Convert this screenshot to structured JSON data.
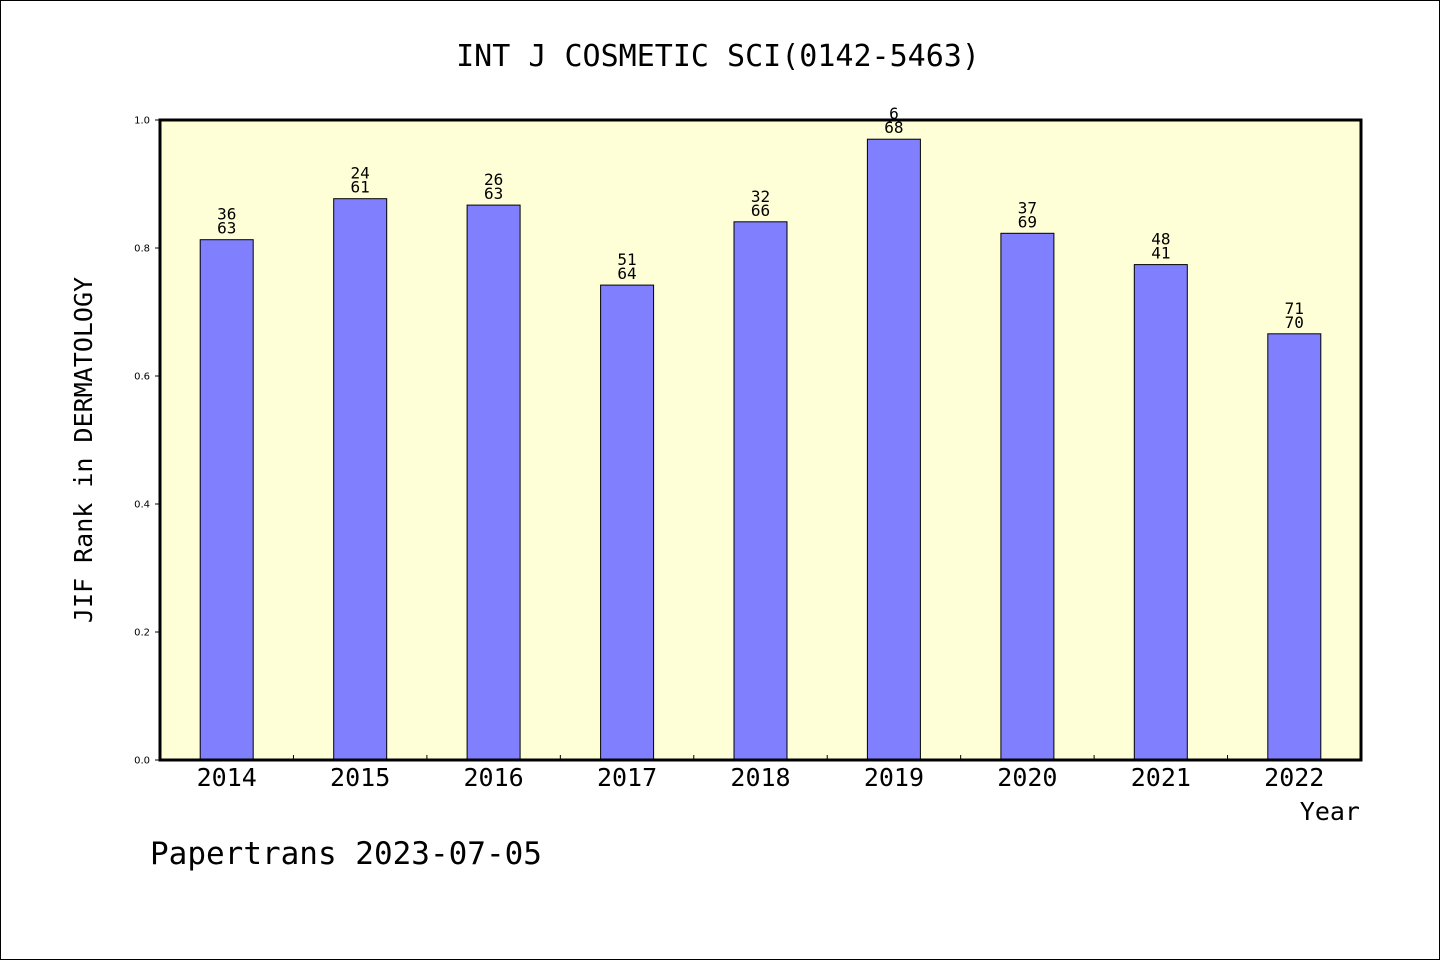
{
  "chart_data": {
    "type": "bar",
    "title": "INT J COSMETIC SCI(0142-5463)",
    "xlabel": "Year",
    "ylabel": "JIF Rank in DERMATOLOGY",
    "ylim": [
      0,
      1.0
    ],
    "yticks": [
      "0.0",
      "0.2",
      "0.4",
      "0.6",
      "0.8",
      "1.0"
    ],
    "categories": [
      "2014",
      "2015",
      "2016",
      "2017",
      "2018",
      "2019",
      "2020",
      "2021",
      "2022"
    ],
    "values": [
      0.813,
      0.877,
      0.867,
      0.742,
      0.841,
      0.97,
      0.823,
      0.774,
      0.666
    ],
    "labels": [
      {
        "top": "36",
        "bottom": "63"
      },
      {
        "top": "24",
        "bottom": "61"
      },
      {
        "top": "26",
        "bottom": "63"
      },
      {
        "top": "51",
        "bottom": "64"
      },
      {
        "top": "32",
        "bottom": "66"
      },
      {
        "top": "6",
        "bottom": "68"
      },
      {
        "top": "37",
        "bottom": "69"
      },
      {
        "top": "48",
        "bottom": "41"
      },
      {
        "top": "71",
        "bottom": "70"
      }
    ],
    "bar_color": "#8080ff",
    "plot_background": "#ffffd7",
    "grid": false,
    "legend": "none"
  },
  "footer": "Papertrans 2023-07-05"
}
